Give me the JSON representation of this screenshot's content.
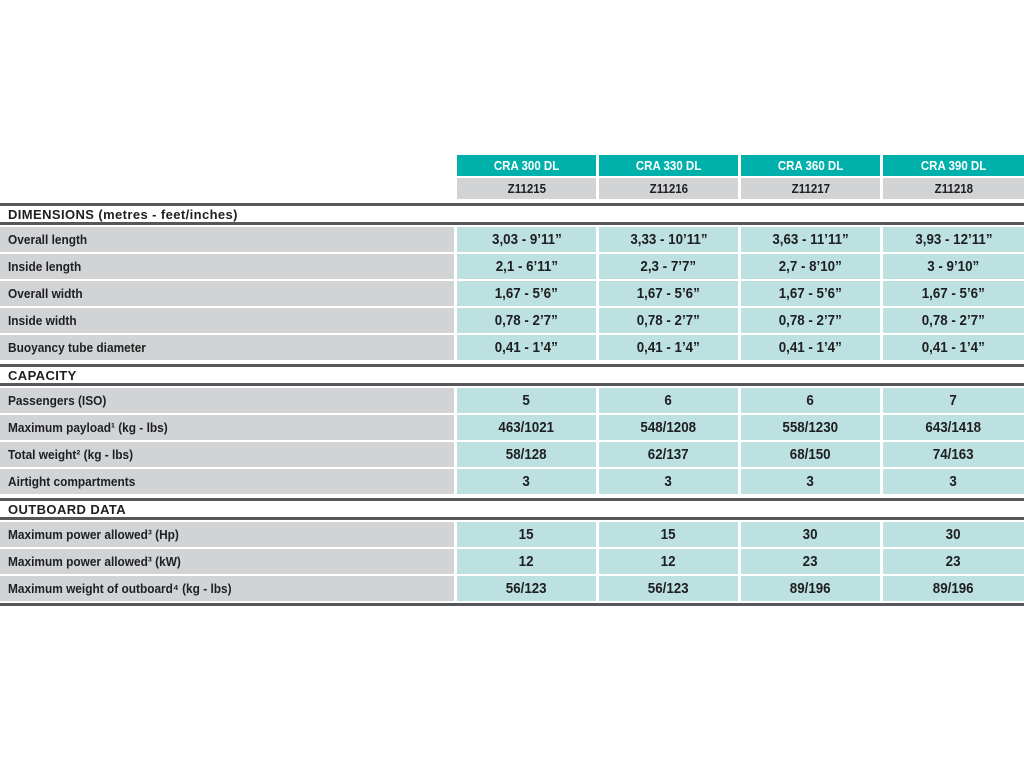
{
  "table": {
    "columns": [
      {
        "model": "CRA 300 DL",
        "code": "Z11215"
      },
      {
        "model": "CRA 330 DL",
        "code": "Z11216"
      },
      {
        "model": "CRA 360 DL",
        "code": "Z11217"
      },
      {
        "model": "CRA 390 DL",
        "code": "Z11218"
      }
    ],
    "sections": [
      {
        "title": "DIMENSIONS (metres - feet/inches)",
        "rows": [
          {
            "label": "Overall length",
            "values": [
              "3,03 - 9’11”",
              "3,33 - 10’11”",
              "3,63 - 11’11”",
              "3,93 - 12’11”"
            ]
          },
          {
            "label": "Inside length",
            "values": [
              "2,1 - 6’11”",
              "2,3 - 7’7”",
              "2,7 - 8’10”",
              "3 - 9’10”"
            ]
          },
          {
            "label": "Overall width",
            "values": [
              "1,67 - 5’6”",
              "1,67 - 5’6”",
              "1,67 - 5’6”",
              "1,67 - 5’6”"
            ]
          },
          {
            "label": "Inside width",
            "values": [
              "0,78 - 2’7”",
              "0,78 - 2’7”",
              "0,78 - 2’7”",
              "0,78 - 2’7”"
            ]
          },
          {
            "label": "Buoyancy tube diameter",
            "values": [
              "0,41 - 1’4”",
              "0,41 - 1’4”",
              "0,41 - 1’4”",
              "0,41 - 1’4”"
            ]
          }
        ]
      },
      {
        "title": "CAPACITY",
        "rows": [
          {
            "label": "Passengers (ISO)",
            "values": [
              "5",
              "6",
              "6",
              "7"
            ]
          },
          {
            "label": "Maximum payload¹ (kg - lbs)",
            "values": [
              "463/1021",
              "548/1208",
              "558/1230",
              "643/1418"
            ]
          },
          {
            "label": "Total weight² (kg - lbs)",
            "values": [
              "58/128",
              "62/137",
              "68/150",
              "74/163"
            ]
          },
          {
            "label": "Airtight compartments",
            "values": [
              "3",
              "3",
              "3",
              "3"
            ]
          }
        ]
      },
      {
        "title": "OUTBOARD DATA",
        "rows": [
          {
            "label": "Maximum power allowed³ (Hp)",
            "values": [
              "15",
              "15",
              "30",
              "30"
            ]
          },
          {
            "label": "Maximum power allowed³ (kW)",
            "values": [
              "12",
              "12",
              "23",
              "23"
            ]
          },
          {
            "label": "Maximum weight of outboard⁴ (kg - lbs)",
            "values": [
              "56/123",
              "56/123",
              "89/196",
              "89/196"
            ]
          }
        ]
      }
    ]
  },
  "colors": {
    "header_teal": "#00b0ab",
    "cell_teal": "#bce1e0",
    "label_gray": "#d1d3d4",
    "rule_dark": "#56575a",
    "text": "#1e1f21"
  }
}
